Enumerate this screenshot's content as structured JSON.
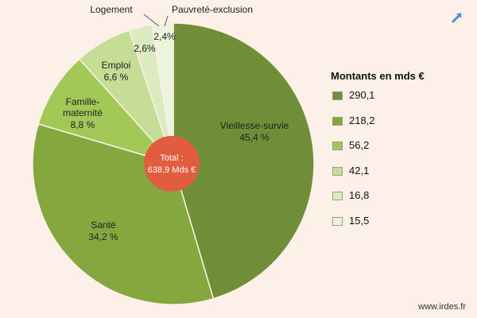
{
  "chart_data": {
    "type": "pie",
    "categories": [
      "Vieillesse-survie",
      "Santé",
      "Famille-maternité",
      "Emploi",
      "Logement",
      "Pauvreté-exclusion"
    ],
    "percent_labels": [
      "45,4 %",
      "34,2 %",
      "8,8 %",
      "6,6 %",
      "2,6%",
      "2,4%"
    ],
    "values": [
      290.1,
      218.2,
      56.2,
      42.1,
      16.8,
      15.5
    ],
    "value_labels": [
      "290,1",
      "218,2",
      "56,2",
      "42,1",
      "16,8",
      "15,5"
    ],
    "colors": [
      "#6f8e37",
      "#84a83e",
      "#a2c857",
      "#c6dd95",
      "#dceac0",
      "#eef3dc"
    ],
    "legend_title": "Montants en mds €",
    "legend_position": "right",
    "total_label_line1": "Total :",
    "total_label_line2": "638,9 Mds €",
    "center_color": "#e25c3f"
  },
  "footer": {
    "credit": "www.irdes.fr"
  },
  "icons": {
    "corner": "expand-arrow-icon"
  }
}
